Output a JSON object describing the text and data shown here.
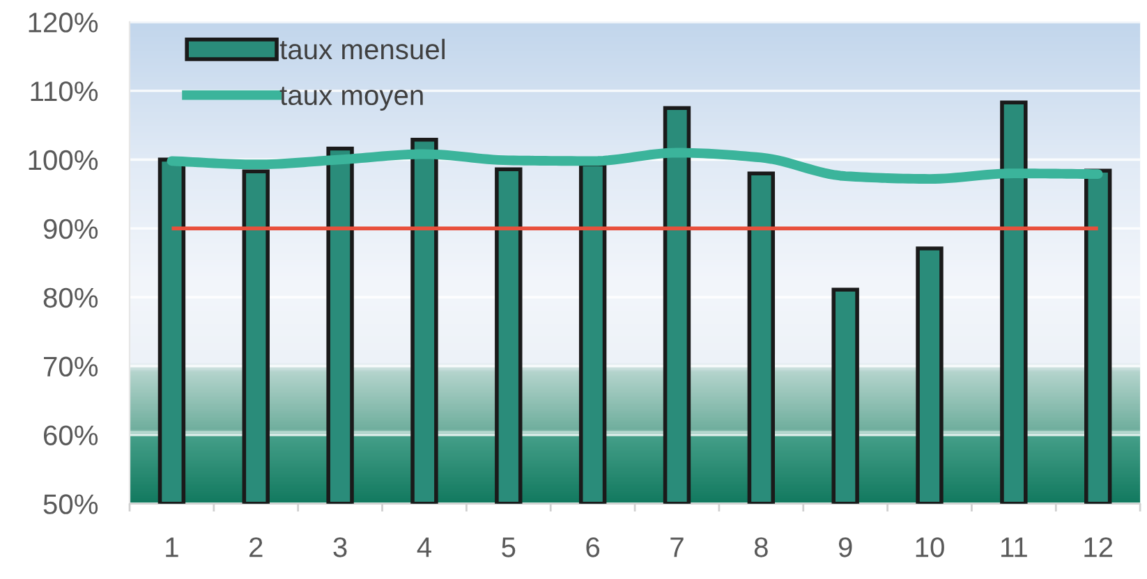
{
  "chart_data": {
    "type": "bar",
    "categories": [
      "1",
      "2",
      "3",
      "4",
      "5",
      "6",
      "7",
      "8",
      "9",
      "10",
      "11",
      "12"
    ],
    "series": [
      {
        "name": "taux mensuel",
        "color": "#2a8c7a",
        "values": [
          100.0,
          98.3,
          101.6,
          102.9,
          98.6,
          99.3,
          107.5,
          98.0,
          81.1,
          87.1,
          108.3,
          98.4
        ]
      },
      {
        "name": "taux moyen",
        "type": "line",
        "color": "#3bb49b",
        "values": [
          99.8,
          99.3,
          100.0,
          100.8,
          99.9,
          99.8,
          101.0,
          100.3,
          97.6,
          97.2,
          98.0,
          97.9
        ]
      }
    ],
    "ylim": [
      50,
      120
    ],
    "yticks": [
      {
        "value": 50,
        "label": "50%"
      },
      {
        "value": 60,
        "label": "60%"
      },
      {
        "value": 70,
        "label": "70%"
      },
      {
        "value": 80,
        "label": "80%"
      },
      {
        "value": 90,
        "label": "90%"
      },
      {
        "value": 100,
        "label": "100%"
      },
      {
        "value": 110,
        "label": "110%"
      },
      {
        "value": 120,
        "label": "120%"
      }
    ],
    "ref_lines": [
      {
        "axis": "y",
        "value": 90,
        "color": "#e8503c"
      }
    ],
    "grid": "y",
    "legend": "top left"
  }
}
